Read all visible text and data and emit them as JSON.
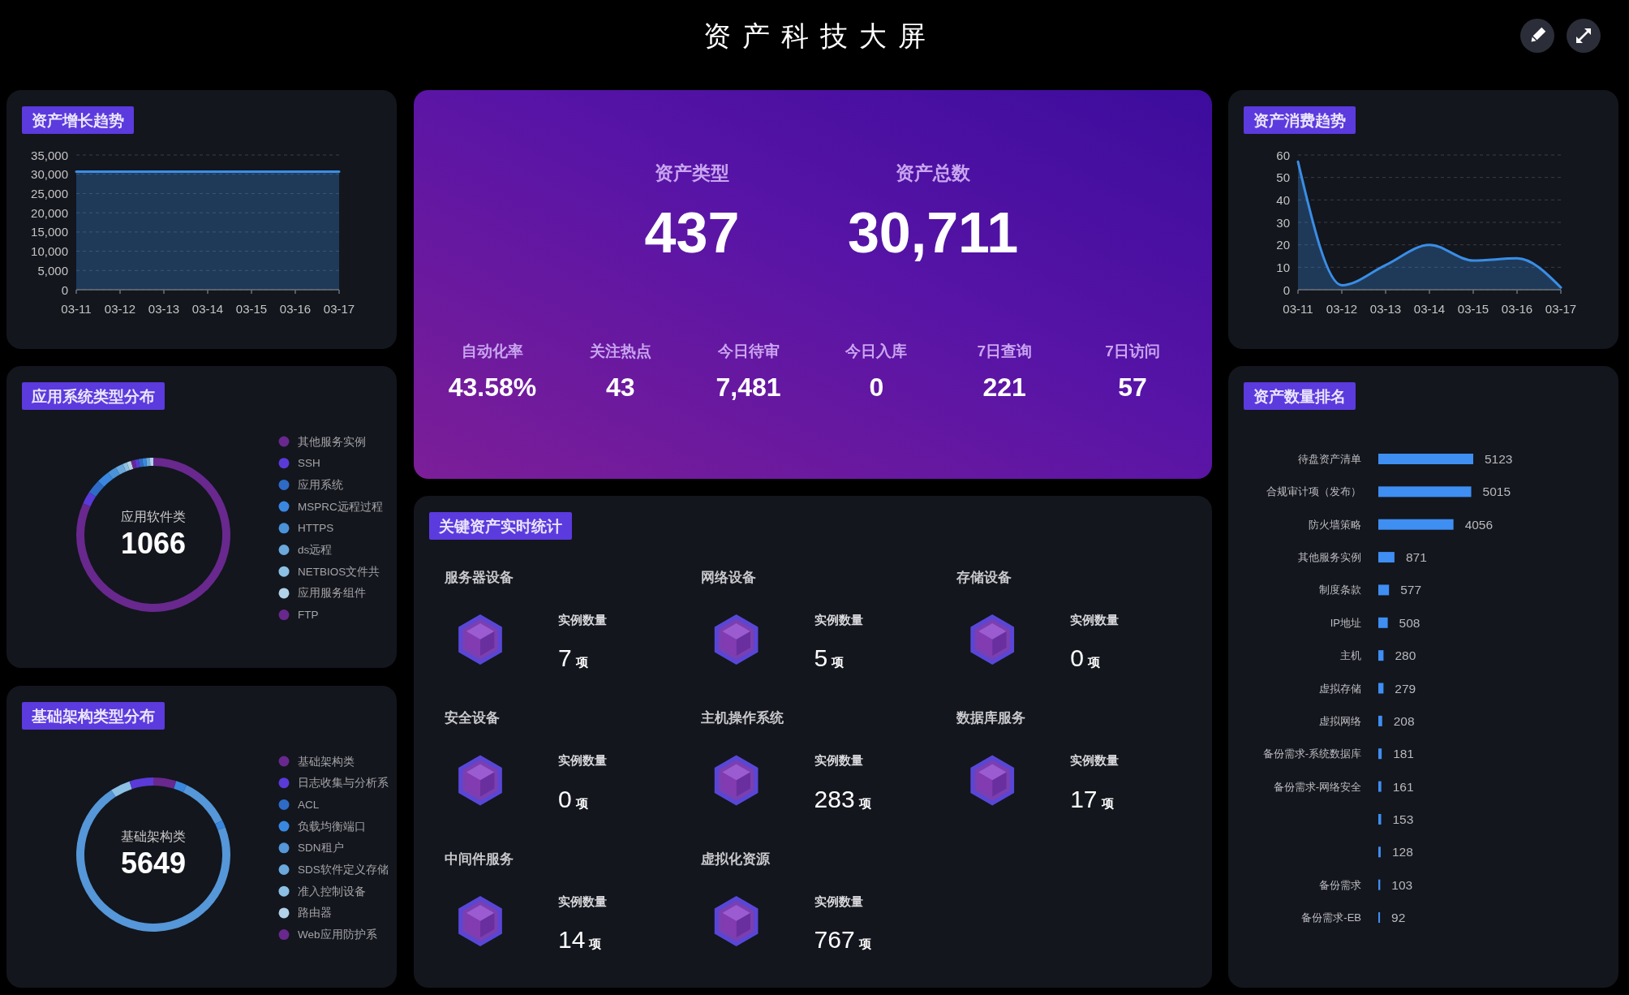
{
  "chart_data": [
    {
      "type": "other",
      "title": "资产科技大屏"
    },
    {
      "type": "area",
      "title": "资产增长趋势",
      "categories": [
        "03-11",
        "03-12",
        "03-13",
        "03-14",
        "03-15",
        "03-16",
        "03-17"
      ],
      "series": [
        {
          "color": "#3a8ee6",
          "values": [
            30700,
            30700,
            30700,
            30700,
            30700,
            30700,
            30700
          ]
        }
      ],
      "ylim": [
        0,
        35000
      ],
      "yticks": [
        0,
        {
          "value": 5000,
          "label": "5,000"
        },
        {
          "value": 10000,
          "label": "10,000"
        },
        {
          "value": 15000,
          "label": "15,000"
        },
        {
          "value": 20000,
          "label": "20,000"
        },
        {
          "value": 25000,
          "label": "25,000"
        },
        {
          "value": 30000,
          "label": "30,000"
        },
        {
          "value": 35000,
          "label": "35,000"
        }
      ],
      "grid": "y"
    },
    {
      "type": "other",
      "categories": [
        "资产类型",
        "资产总数",
        "自动化率",
        "关注热点",
        "今日待审",
        "今日入库",
        "7日查询",
        "7日访问"
      ],
      "value_labels": [
        "437",
        "30,711",
        "43.58%",
        "43",
        "7,481",
        "0",
        "221",
        "57"
      ]
    },
    {
      "type": "area",
      "title": "资产消费趋势",
      "categories": [
        "03-11",
        "03-12",
        "03-13",
        "03-14",
        "03-15",
        "03-16",
        "03-17"
      ],
      "series": [
        {
          "color": "#3a8ee6",
          "values": [
            57,
            2,
            11,
            20,
            13,
            14,
            1
          ]
        }
      ],
      "ylim": [
        0,
        60
      ],
      "yticks": [
        0,
        10,
        20,
        30,
        40,
        50,
        60
      ],
      "grid": "y"
    },
    {
      "type": "donut",
      "title": "应用系统类型分布",
      "categories": [
        "其他服务实例",
        "SSH",
        "应用系统",
        "MSPRC远程过程",
        "HTTPS",
        "ds远程",
        "NETBIOS文件共",
        "应用服务组件",
        "FTP",
        null,
        null,
        null,
        null,
        null
      ],
      "values": [
        81.7,
        2.6,
        3.0,
        2.7,
        1.9,
        1.6,
        0.9,
        0.9,
        0.8,
        0.8,
        0.8,
        0.8,
        0.8,
        0.7
      ],
      "colors": [
        "#68288e",
        "#5a3ad8",
        "#2e6bc6",
        "#3a87e0",
        "#4b93d8",
        "#6ba8dc",
        "#8cc0e4",
        "#b2d2e8",
        "#68288e",
        "#5a3ad8",
        "#2e6bc6",
        "#3a87e0",
        "#6ba8dc",
        "#b2d2e8"
      ],
      "legend": "right",
      "annotations": [
        "应用软件类",
        "1066"
      ]
    },
    {
      "type": "bar",
      "orientation": "horizontal",
      "title": "资产数量排名",
      "categories": [
        "待盘资产清单",
        "合规审计项（发布）",
        "防火墙策略",
        "其他服务实例",
        "制度条款",
        "IP地址",
        "主机",
        "虚拟存储",
        "虚拟网络",
        "备份需求-系统数据库",
        "备份需求-网络安全",
        null,
        null,
        "备份需求",
        "备份需求-EB"
      ],
      "values": [
        5123,
        5015,
        4056,
        871,
        577,
        508,
        280,
        279,
        208,
        181,
        161,
        153,
        128,
        103,
        92
      ],
      "color": "#3f8ef2",
      "data_labels": true
    },
    {
      "type": "other",
      "title": "关键资产实时统计",
      "annotations": [
        "服务器设备",
        "实例数量",
        "7",
        "项",
        "网络设备",
        "实例数量",
        "5",
        "项",
        "存储设备",
        "实例数量",
        "0",
        "项",
        "安全设备",
        "实例数量",
        "0",
        "项",
        "主机操作系统",
        "实例数量",
        "283",
        "项",
        "数据库服务",
        "实例数量",
        "17",
        "项",
        "中间件服务",
        "实例数量",
        "14",
        "项",
        "虚拟化资源",
        "实例数量",
        "767",
        "项"
      ]
    },
    {
      "type": "donut",
      "title": "基础架构类型分布",
      "categories": [
        "基础架构类",
        "日志收集与分析系",
        "ACL",
        "负载均衡端口",
        "SDN租户",
        "SDS软件定义存储",
        "准入控制设备",
        "路由器",
        "Web应用防护系",
        null,
        null,
        null,
        null
      ],
      "values": [
        4.8,
        0,
        0,
        2.3,
        10.6,
        0,
        0,
        0,
        0,
        1.5,
        71.6,
        4.2,
        5.0
      ],
      "colors": [
        "#68288e",
        "#5a3ad8",
        "#2e6bc6",
        "#3a87e0",
        "#5597d8",
        "#6ba8dc",
        "#8cc0e4",
        "#b2d2e8",
        "#68288e",
        "#3a87e0",
        "#5597d8",
        "#8cc0e4",
        "#5a3ad8"
      ],
      "legend": "right",
      "annotations": [
        "基础架构类",
        "5649"
      ]
    }
  ]
}
